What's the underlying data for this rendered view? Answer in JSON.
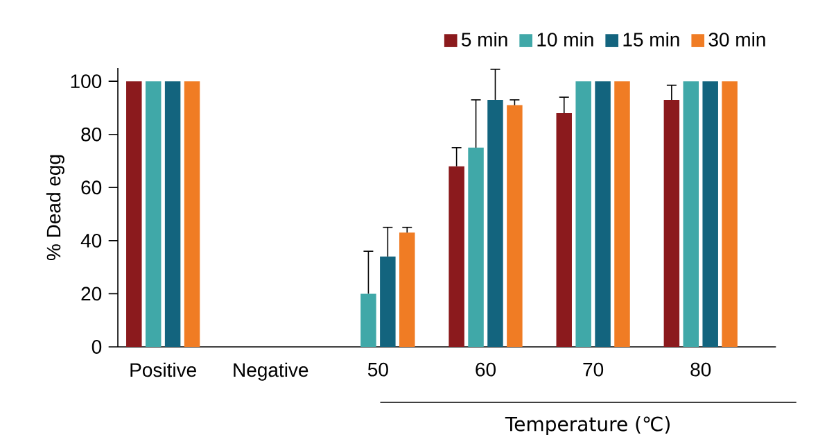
{
  "chart_data": {
    "type": "bar",
    "xlabel": "Temperature (℃)",
    "ylabel": "% Dead egg",
    "categories": [
      "Positive",
      "Negative",
      "50",
      "60",
      "70",
      "80"
    ],
    "series": [
      {
        "name": "5 min",
        "color": "#8b1a1d",
        "values": [
          100,
          0,
          0,
          68,
          88,
          93
        ],
        "errors": [
          null,
          null,
          null,
          [
            68,
            75
          ],
          [
            88,
            94
          ],
          [
            93,
            98.5
          ]
        ]
      },
      {
        "name": "10 min",
        "color": "#40a8a8",
        "values": [
          100,
          0,
          20,
          75,
          100,
          100
        ],
        "errors": [
          null,
          null,
          [
            20,
            36
          ],
          [
            75,
            93
          ],
          null,
          null
        ]
      },
      {
        "name": "15 min",
        "color": "#13647e",
        "values": [
          100,
          0,
          34,
          93,
          100,
          100
        ],
        "errors": [
          null,
          null,
          [
            34,
            45
          ],
          [
            93,
            104.5
          ],
          null,
          null
        ]
      },
      {
        "name": "30 min",
        "color": "#f07c24",
        "values": [
          100,
          0,
          43,
          91,
          100,
          100
        ],
        "errors": [
          null,
          null,
          [
            43,
            45
          ],
          [
            91,
            93
          ],
          null,
          null
        ]
      }
    ],
    "ylim": [
      0,
      105
    ],
    "yticks": [
      0,
      20,
      40,
      60,
      80,
      100
    ],
    "grid": false,
    "legend": "top right"
  }
}
